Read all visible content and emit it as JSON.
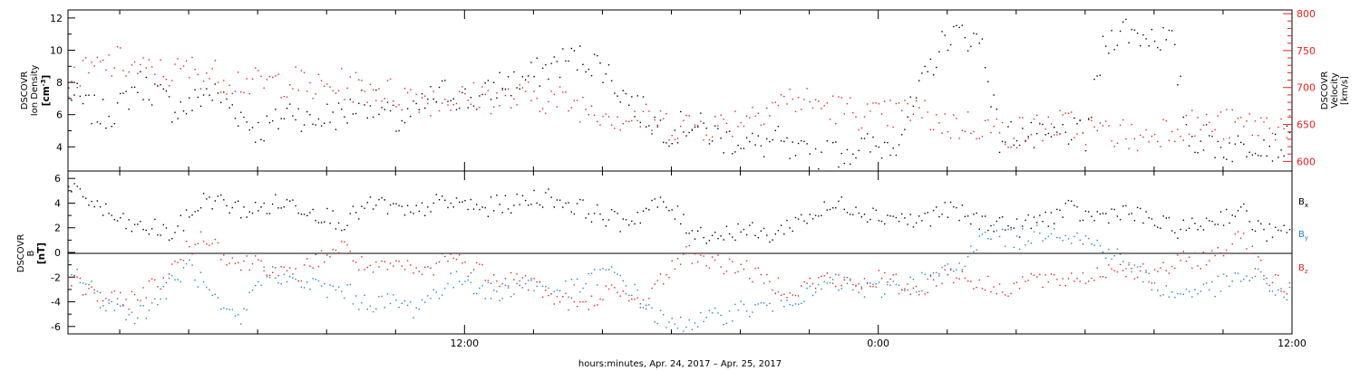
{
  "colors": {
    "black": "#000000",
    "red": "#e8201c",
    "blue": "#1a7fd6"
  },
  "chart_data": [
    {
      "type": "scatter",
      "panel": "density-velocity",
      "ylabel_left": [
        "DSCOVR",
        "Ion Density",
        "[cm",
        "-3",
        "]"
      ],
      "ylabel_right": [
        "DSCOVR",
        "Velocity",
        "[km/s]"
      ],
      "ylim_left": [
        2.5,
        12.5
      ],
      "ylim_right": [
        587,
        805
      ],
      "yticks_left": [
        "4",
        "6",
        "8",
        "10",
        "12"
      ],
      "yticks_left_values": [
        4,
        6,
        8,
        10,
        12
      ],
      "yticks_right": [
        "600",
        "650",
        "700",
        "750",
        "800"
      ],
      "yticks_right_values": [
        600,
        650,
        700,
        750,
        800
      ],
      "xlim_hours": [
        0.5,
        36.0
      ],
      "series": [
        {
          "color": "#000000",
          "axis": "left",
          "x": [
            0.5,
            1.0,
            1.5,
            2.0,
            2.5,
            3.0,
            3.5,
            4.0,
            4.5,
            5.0,
            5.5,
            6.0,
            6.5,
            7.0,
            7.5,
            8.0,
            8.5,
            9.0,
            9.5,
            10.0,
            10.5,
            11.0,
            11.5,
            12.0,
            12.5,
            13.0,
            13.5,
            14.0,
            14.5,
            15.0,
            15.5,
            16.0,
            16.5,
            17.0,
            17.5,
            18.0,
            18.5,
            19.0,
            19.5,
            20.0,
            20.5,
            21.0,
            21.5,
            22.0,
            22.5,
            23.0,
            23.5,
            24.0,
            24.5,
            25.0,
            25.5,
            26.0,
            26.5,
            27.0,
            27.5,
            28.0,
            28.5,
            29.0,
            29.5,
            30.0,
            30.5,
            31.0,
            31.5,
            32.0,
            32.5,
            33.0,
            33.5,
            34.0,
            34.5,
            35.0,
            35.5,
            36.0
          ],
          "y": [
            7.5,
            6.5,
            6.0,
            6.5,
            8.0,
            7.5,
            6.5,
            6.5,
            7.5,
            7.0,
            6.0,
            5.0,
            5.5,
            6.5,
            5.5,
            6.0,
            6.0,
            7.0,
            6.5,
            5.5,
            6.0,
            7.0,
            7.5,
            7.0,
            7.0,
            8.0,
            8.0,
            8.5,
            9.0,
            9.5,
            9.5,
            9.0,
            7.5,
            6.5,
            5.5,
            5.0,
            5.5,
            5.0,
            4.5,
            4.5,
            4.0,
            4.5,
            3.5,
            3.5,
            3.5,
            3.8,
            4.0,
            4.0,
            4.5,
            6.5,
            9.0,
            11.0,
            11.0,
            10.5,
            4.5,
            5.0,
            4.5,
            4.5,
            5.0,
            4.5,
            10.0,
            11.5,
            11.0,
            11.0,
            10.5,
            4.5,
            4.5,
            4.0,
            4.0,
            4.5,
            4.0,
            4.5
          ]
        },
        {
          "color": "#e8201c",
          "axis": "right",
          "x": [
            0.5,
            1.0,
            1.5,
            2.0,
            2.5,
            3.0,
            3.5,
            4.0,
            4.5,
            5.0,
            5.5,
            6.0,
            6.5,
            7.0,
            7.5,
            8.0,
            8.5,
            9.0,
            9.5,
            10.0,
            10.5,
            11.0,
            11.5,
            12.0,
            12.5,
            13.0,
            13.5,
            14.0,
            14.5,
            15.0,
            15.5,
            16.0,
            16.5,
            17.0,
            17.5,
            18.0,
            18.5,
            19.0,
            19.5,
            20.0,
            20.5,
            21.0,
            21.5,
            22.0,
            22.5,
            23.0,
            23.5,
            24.0,
            24.5,
            25.0,
            25.5,
            26.0,
            26.5,
            27.0,
            27.5,
            28.0,
            28.5,
            29.0,
            29.5,
            30.0,
            30.5,
            31.0,
            31.5,
            32.0,
            32.5,
            33.0,
            33.5,
            34.0,
            34.5,
            35.0,
            35.5,
            36.0
          ],
          "y": [
            710,
            720,
            730,
            735,
            725,
            720,
            720,
            725,
            720,
            715,
            710,
            705,
            708,
            710,
            700,
            700,
            705,
            700,
            700,
            690,
            690,
            685,
            685,
            685,
            690,
            685,
            685,
            690,
            685,
            680,
            675,
            670,
            660,
            660,
            655,
            650,
            650,
            650,
            650,
            660,
            670,
            680,
            685,
            680,
            675,
            670,
            665,
            660,
            665,
            670,
            660,
            650,
            650,
            650,
            640,
            640,
            645,
            650,
            650,
            645,
            640,
            640,
            630,
            640,
            650,
            650,
            650,
            650,
            650,
            650,
            650,
            650
          ]
        }
      ]
    },
    {
      "type": "scatter",
      "panel": "magnetic-field",
      "ylabel_left": [
        "DSCOVR",
        "B",
        "[nT]"
      ],
      "ylim": [
        -6.6,
        6.6
      ],
      "yticks": [
        "6",
        "4",
        "2",
        "0",
        "-2",
        "-4",
        "-6"
      ],
      "yticks_values": [
        6,
        4,
        2,
        0,
        -2,
        -4,
        -6
      ],
      "xlim_hours": [
        0.5,
        36.0
      ],
      "legend_placement": "right",
      "series": [
        {
          "name": "B",
          "sub": "x",
          "color": "#000000",
          "x": [
            0.5,
            1.0,
            1.5,
            2.0,
            2.5,
            3.0,
            3.5,
            4.0,
            4.5,
            5.0,
            5.5,
            6.0,
            6.5,
            7.0,
            7.5,
            8.0,
            8.5,
            9.0,
            9.5,
            10.0,
            10.5,
            11.0,
            11.5,
            12.0,
            12.5,
            13.0,
            13.5,
            14.0,
            14.5,
            15.0,
            15.5,
            16.0,
            16.5,
            17.0,
            17.5,
            18.0,
            18.5,
            19.0,
            19.5,
            20.0,
            20.5,
            21.0,
            21.5,
            22.0,
            22.5,
            23.0,
            23.5,
            24.0,
            24.5,
            25.0,
            25.5,
            26.0,
            26.5,
            27.0,
            27.5,
            28.0,
            28.5,
            29.0,
            29.5,
            30.0,
            30.5,
            31.0,
            31.5,
            32.0,
            32.5,
            33.0,
            33.5,
            34.0,
            34.5,
            35.0,
            35.5,
            36.0
          ],
          "y": [
            5.0,
            4.5,
            3.5,
            2.5,
            2.0,
            2.0,
            1.5,
            3.0,
            4.5,
            4.0,
            3.5,
            3.5,
            4.0,
            4.0,
            3.5,
            3.0,
            2.5,
            3.5,
            4.0,
            3.5,
            3.0,
            4.0,
            4.0,
            4.0,
            3.5,
            4.0,
            4.0,
            4.5,
            4.5,
            4.0,
            3.5,
            3.0,
            2.5,
            3.0,
            4.0,
            3.5,
            2.0,
            1.5,
            1.5,
            2.0,
            1.5,
            1.5,
            2.5,
            3.0,
            3.5,
            4.0,
            3.5,
            3.0,
            3.0,
            2.5,
            3.0,
            3.5,
            3.0,
            2.5,
            2.5,
            2.0,
            2.5,
            3.0,
            3.5,
            3.0,
            3.0,
            3.5,
            3.0,
            2.5,
            2.0,
            2.0,
            2.5,
            3.0,
            3.5,
            2.0,
            1.5,
            1.5
          ]
        },
        {
          "name": "B",
          "sub": "y",
          "color": "#1a7fd6",
          "x": [
            0.5,
            1.0,
            1.5,
            2.0,
            2.5,
            3.0,
            3.5,
            4.0,
            4.5,
            5.0,
            5.5,
            6.0,
            6.5,
            7.0,
            7.5,
            8.0,
            8.5,
            9.0,
            9.5,
            10.0,
            10.5,
            11.0,
            11.5,
            12.0,
            12.5,
            13.0,
            13.5,
            14.0,
            14.5,
            15.0,
            15.5,
            16.0,
            16.5,
            17.0,
            17.5,
            18.0,
            18.5,
            19.0,
            19.5,
            20.0,
            20.5,
            21.0,
            21.5,
            22.0,
            22.5,
            23.0,
            23.5,
            24.0,
            24.5,
            25.0,
            25.5,
            26.0,
            26.5,
            27.0,
            27.5,
            28.0,
            28.5,
            29.0,
            29.5,
            30.0,
            30.5,
            31.0,
            31.5,
            32.0,
            32.5,
            33.0,
            33.5,
            34.0,
            34.5,
            35.0,
            35.5,
            36.0
          ],
          "y": [
            -1.0,
            -2.5,
            -4.0,
            -4.5,
            -5.0,
            -4.0,
            -2.5,
            -1.0,
            -3.0,
            -5.0,
            -5.5,
            -2.0,
            -1.5,
            -2.5,
            -2.5,
            -3.0,
            -3.0,
            -4.0,
            -4.0,
            -4.0,
            -4.5,
            -3.5,
            -2.5,
            -2.0,
            -3.0,
            -3.5,
            -2.5,
            -2.5,
            -3.0,
            -3.0,
            -2.5,
            -1.5,
            -2.0,
            -3.5,
            -5.0,
            -6.0,
            -5.5,
            -5.5,
            -5.0,
            -4.5,
            -4.5,
            -4.0,
            -3.5,
            -3.5,
            -2.5,
            -2.5,
            -3.0,
            -3.0,
            -2.5,
            -2.5,
            -2.0,
            -1.5,
            -1.0,
            2.0,
            1.5,
            1.0,
            1.5,
            2.0,
            1.5,
            1.0,
            0.5,
            -0.5,
            -1.5,
            -2.5,
            -3.5,
            -3.0,
            -3.0,
            -2.5,
            -2.0,
            -2.0,
            -3.0,
            -3.5
          ]
        },
        {
          "name": "B",
          "sub": "z",
          "color": "#e8201c",
          "x": [
            0.5,
            1.0,
            1.5,
            2.0,
            2.5,
            3.0,
            3.5,
            4.0,
            4.5,
            5.0,
            5.5,
            6.0,
            6.5,
            7.0,
            7.5,
            8.0,
            8.5,
            9.0,
            9.5,
            10.0,
            10.5,
            11.0,
            11.5,
            12.0,
            12.5,
            13.0,
            13.5,
            14.0,
            14.5,
            15.0,
            15.5,
            16.0,
            16.5,
            17.0,
            17.5,
            18.0,
            18.5,
            19.0,
            19.5,
            20.0,
            20.5,
            21.0,
            21.5,
            22.0,
            22.5,
            23.0,
            23.5,
            24.0,
            24.5,
            25.0,
            25.5,
            26.0,
            26.5,
            27.0,
            27.5,
            28.0,
            28.5,
            29.0,
            29.5,
            30.0,
            30.5,
            31.0,
            31.5,
            32.0,
            32.5,
            33.0,
            33.5,
            34.0,
            34.5,
            35.0,
            35.5,
            36.0
          ],
          "y": [
            -2.0,
            -3.0,
            -3.5,
            -4.0,
            -3.5,
            -2.5,
            -1.5,
            0.5,
            1.5,
            0.0,
            -1.0,
            -0.5,
            -1.5,
            -2.0,
            -1.0,
            0.0,
            0.5,
            -1.0,
            -1.5,
            -1.0,
            -1.5,
            -1.5,
            0.0,
            -1.0,
            -1.5,
            -2.0,
            -2.0,
            -2.5,
            -3.5,
            -4.0,
            -4.5,
            -3.0,
            -3.5,
            -4.0,
            -3.0,
            -1.0,
            0.0,
            -0.5,
            -1.0,
            -1.0,
            -2.0,
            -2.5,
            -3.0,
            -2.5,
            -2.0,
            -2.5,
            -2.5,
            -2.0,
            -2.5,
            -3.0,
            -2.5,
            -1.5,
            -2.0,
            -2.5,
            -3.0,
            -2.5,
            -2.0,
            -2.5,
            -2.0,
            -2.0,
            -1.5,
            -1.0,
            -1.5,
            -2.0,
            -1.0,
            -0.5,
            -0.5,
            0.0,
            2.0,
            -1.0,
            -2.5,
            -3.0
          ]
        }
      ]
    }
  ],
  "time_axis": {
    "tick_labels": [
      "12:00",
      "0:00",
      "12:00"
    ],
    "tick_hours": [
      12,
      24,
      36
    ],
    "xlabel": "hours:minutes, Apr. 24, 2017 – Apr. 25, 2017"
  }
}
